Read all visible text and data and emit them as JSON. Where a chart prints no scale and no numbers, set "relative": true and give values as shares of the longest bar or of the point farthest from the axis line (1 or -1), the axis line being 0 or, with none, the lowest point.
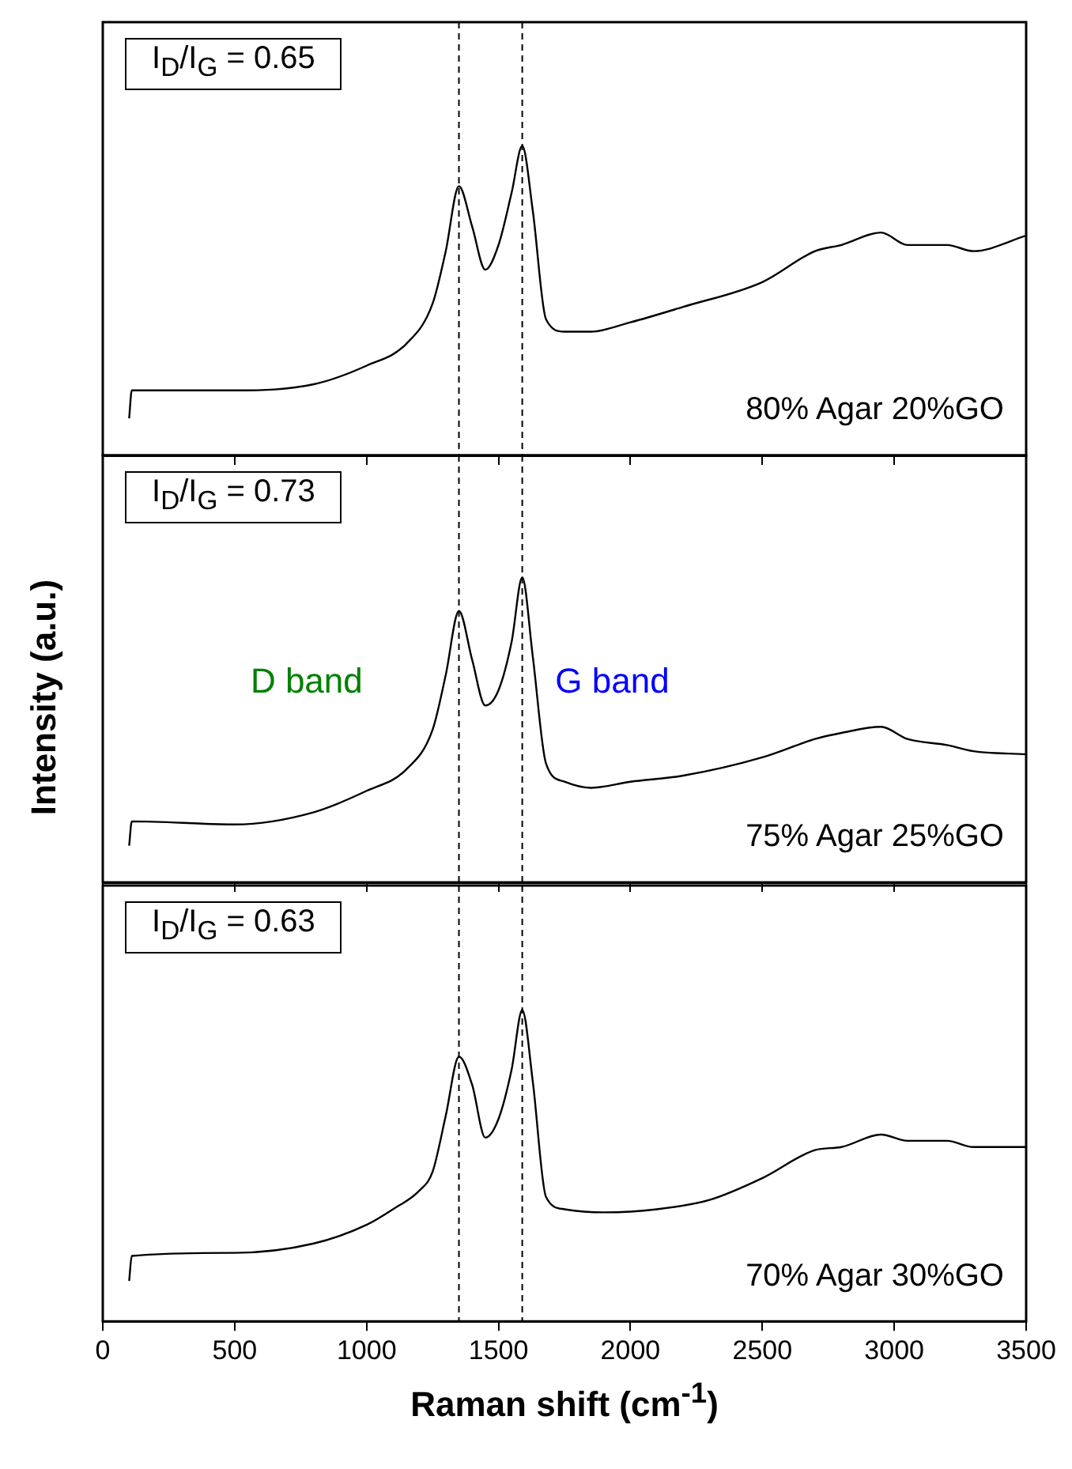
{
  "chart_data": [
    {
      "type": "line",
      "relative": true,
      "tick_labels": false,
      "xlim": [
        0,
        3500
      ],
      "xticks": [
        0,
        500,
        1000,
        1500,
        2000,
        2500,
        3000,
        3500
      ],
      "x": [
        100,
        110,
        500,
        800,
        1000,
        1150,
        1250,
        1300,
        1350,
        1400,
        1450,
        1500,
        1550,
        1590,
        1630,
        1680,
        1750,
        1850,
        2000,
        2200,
        2500,
        2700,
        2800,
        2950,
        3050,
        3200,
        3300,
        3500
      ],
      "series": [
        {
          "color": "#000000",
          "values": [
            0.12,
            0.21,
            0.21,
            0.23,
            0.29,
            0.36,
            0.49,
            0.66,
            0.87,
            0.74,
            0.6,
            0.68,
            0.85,
            1.0,
            0.79,
            0.44,
            0.4,
            0.4,
            0.43,
            0.48,
            0.56,
            0.66,
            0.68,
            0.72,
            0.68,
            0.68,
            0.66,
            0.71
          ]
        }
      ],
      "ref_lines": [
        {
          "axis": "x",
          "value": 1350,
          "line_style": "dashed"
        },
        {
          "axis": "x",
          "value": 1590,
          "line_style": "dashed"
        }
      ],
      "annotations": [
        "I$_{D}$/I$_{G}$ = 0.65",
        "80% Agar 20%GO"
      ]
    },
    {
      "type": "line",
      "relative": true,
      "tick_labels": false,
      "ylabel": "Intensity (a.u.)",
      "xlim": [
        0,
        3500
      ],
      "xticks": [
        0,
        500,
        1000,
        1500,
        2000,
        2500,
        3000,
        3500
      ],
      "x": [
        100,
        110,
        500,
        800,
        1000,
        1150,
        1250,
        1300,
        1350,
        1400,
        1450,
        1500,
        1550,
        1590,
        1630,
        1680,
        1750,
        1850,
        2000,
        2200,
        2500,
        2700,
        2800,
        2950,
        3050,
        3200,
        3300,
        3500
      ],
      "series": [
        {
          "color": "#000000",
          "values": [
            0.12,
            0.2,
            0.19,
            0.23,
            0.3,
            0.37,
            0.5,
            0.68,
            0.89,
            0.73,
            0.58,
            0.63,
            0.79,
            1.0,
            0.74,
            0.39,
            0.33,
            0.31,
            0.33,
            0.35,
            0.41,
            0.47,
            0.49,
            0.51,
            0.47,
            0.45,
            0.43,
            0.42
          ]
        }
      ],
      "ref_lines": [
        {
          "axis": "x",
          "value": 1350,
          "line_style": "dashed"
        },
        {
          "axis": "x",
          "value": 1590,
          "line_style": "dashed"
        }
      ],
      "annotations": [
        "I$_{D}$/I$_{G}$ = 0.73",
        "D band",
        "G band",
        "75% Agar 25%GO"
      ]
    },
    {
      "type": "line",
      "relative": true,
      "tick_labels": "x",
      "xlabel": "Raman shift (cm$^{-1}$)",
      "xlim": [
        0,
        3500
      ],
      "xticks": [
        0,
        500,
        1000,
        1500,
        2000,
        2500,
        3000,
        3500
      ],
      "x": [
        100,
        110,
        500,
        800,
        1000,
        1100,
        1200,
        1250,
        1300,
        1350,
        1400,
        1450,
        1500,
        1550,
        1590,
        1630,
        1680,
        1750,
        1900,
        2100,
        2300,
        2500,
        2700,
        2800,
        2950,
        3050,
        3200,
        3300,
        3500
      ],
      "series": [
        {
          "color": "#000000",
          "values": [
            0.13,
            0.21,
            0.22,
            0.25,
            0.31,
            0.36,
            0.42,
            0.48,
            0.66,
            0.85,
            0.76,
            0.59,
            0.65,
            0.81,
            1.0,
            0.77,
            0.4,
            0.36,
            0.35,
            0.36,
            0.39,
            0.46,
            0.55,
            0.56,
            0.6,
            0.58,
            0.58,
            0.56,
            0.56
          ]
        }
      ],
      "ref_lines": [
        {
          "axis": "x",
          "value": 1350,
          "line_style": "dashed"
        },
        {
          "axis": "x",
          "value": 1590,
          "line_style": "dashed"
        }
      ],
      "annotations": [
        "I$_{D}$/I$_{G}$ = 0.63",
        "70% Agar 30%GO"
      ]
    }
  ]
}
